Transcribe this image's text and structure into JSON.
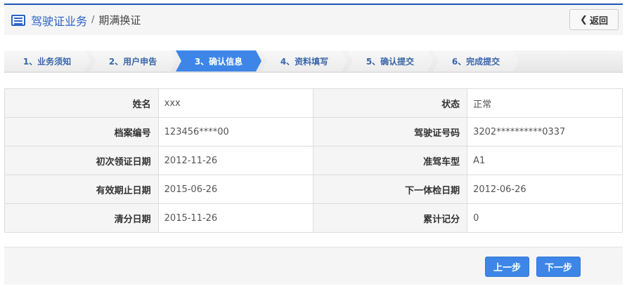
{
  "header": {
    "title": "驾驶证业务",
    "separator": "/",
    "subtitle": "期满换证",
    "back_label": "返回"
  },
  "steps": [
    {
      "label": "1、业务须知",
      "active": false
    },
    {
      "label": "2、用户申告",
      "active": false
    },
    {
      "label": "3、确认信息",
      "active": true
    },
    {
      "label": "4、资料填写",
      "active": false
    },
    {
      "label": "5、确认提交",
      "active": false
    },
    {
      "label": "6、完成提交",
      "active": false
    }
  ],
  "info": [
    [
      {
        "label": "姓名",
        "value": "xxx"
      },
      {
        "label": "状态",
        "value": "正常"
      }
    ],
    [
      {
        "label": "档案编号",
        "value": "123456****00"
      },
      {
        "label": "驾驶证号码",
        "value": "3202**********0337"
      }
    ],
    [
      {
        "label": "初次领证日期",
        "value": "2012-11-26"
      },
      {
        "label": "准驾车型",
        "value": "A1"
      }
    ],
    [
      {
        "label": "有效期止日期",
        "value": "2015-06-26"
      },
      {
        "label": "下一体检日期",
        "value": "2012-06-26"
      }
    ],
    [
      {
        "label": "清分日期",
        "value": "2015-11-26"
      },
      {
        "label": "累计记分",
        "value": "0"
      }
    ]
  ],
  "footer": {
    "prev_label": "上一步",
    "next_label": "下一步"
  },
  "colors": {
    "accent": "#3d86e8",
    "header_blue": "#2a62c9"
  }
}
